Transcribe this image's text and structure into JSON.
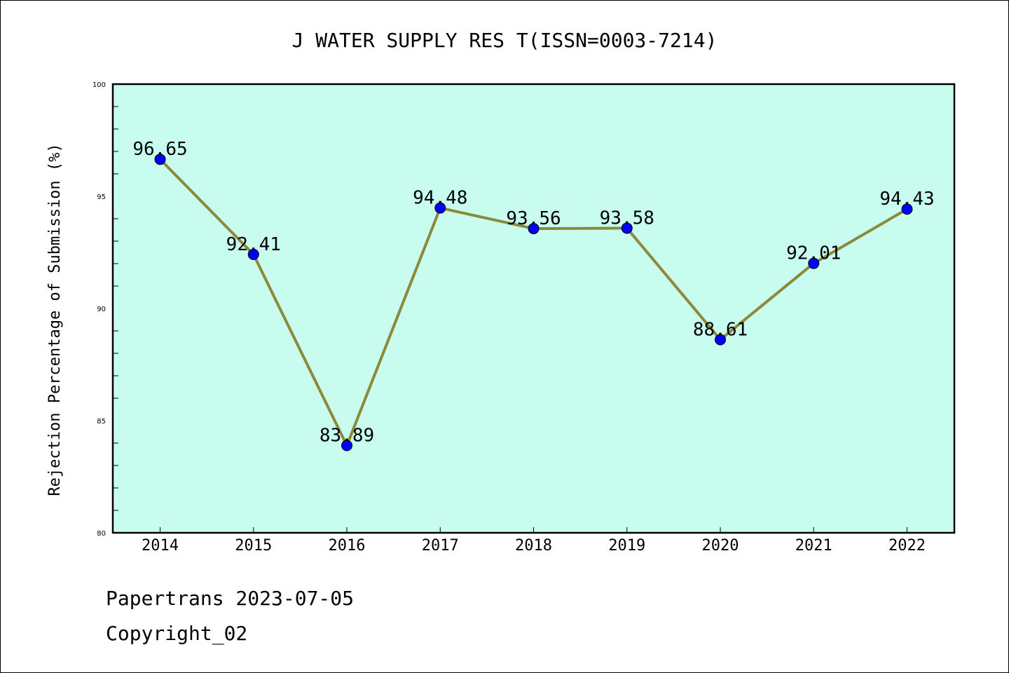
{
  "chart_data": {
    "type": "line",
    "title": "J WATER SUPPLY RES T(ISSN=0003-7214)",
    "xlabel": "",
    "ylabel": "Rejection Percentage of Submission (%)",
    "categories": [
      "2014",
      "2015",
      "2016",
      "2017",
      "2018",
      "2019",
      "2020",
      "2021",
      "2022"
    ],
    "series": [
      {
        "values": [
          96.65,
          92.41,
          83.89,
          94.48,
          93.56,
          93.58,
          88.61,
          92.01,
          94.43
        ],
        "labels": [
          "96.65",
          "92.41",
          "83.89",
          "94.48",
          "93.56",
          "93.58",
          "88.61",
          "92.01",
          "94.43"
        ],
        "line_color": "#8c8a3a",
        "marker_color": "#0000ff"
      }
    ],
    "ylim": [
      80,
      100
    ],
    "yticks": [
      "80",
      "85",
      "90",
      "95",
      "100"
    ],
    "plot_background": "#c8fcee",
    "grid": false,
    "legend": "none"
  },
  "footer": {
    "line1": "Papertrans 2023-07-05",
    "line2": "Copyright_02"
  }
}
